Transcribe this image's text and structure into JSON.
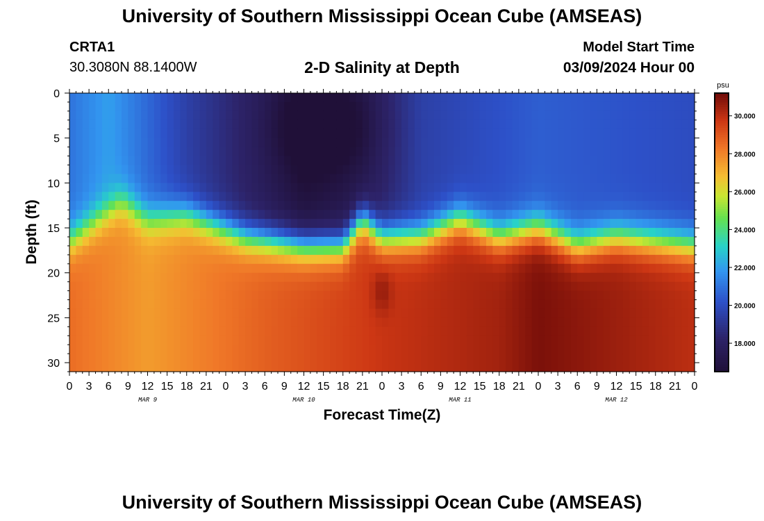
{
  "header": {
    "title": "University of Southern Mississippi Ocean Cube (AMSEAS)",
    "station": "CRTA1",
    "coordinates": "30.3080N  88.1400W",
    "subtitle": "2-D Salinity at Depth",
    "model_start_label": "Model Start Time",
    "model_start_value": "03/09/2024 Hour 00"
  },
  "footer": {
    "title": "University of Southern Mississippi Ocean Cube (AMSEAS)"
  },
  "chart_data": {
    "type": "heatmap",
    "title": "2-D Salinity at Depth",
    "xlabel": "Forecast Time(Z)",
    "ylabel": "Depth (ft)",
    "x_unit": "hours since 03/09/2024 00Z",
    "xlim": [
      0,
      96
    ],
    "ylim": [
      31,
      0
    ],
    "x_tick_labels": [
      "0",
      "3",
      "6",
      "9",
      "12",
      "15",
      "18",
      "21",
      "0",
      "3",
      "6",
      "9",
      "12",
      "15",
      "18",
      "21",
      "0",
      "3",
      "6",
      "9",
      "12",
      "15",
      "18",
      "21",
      "0",
      "3",
      "6",
      "9",
      "12",
      "15",
      "18",
      "21",
      "0"
    ],
    "day_labels": [
      {
        "label": "MAR 9",
        "hour": 12
      },
      {
        "label": "MAR 10",
        "hour": 36
      },
      {
        "label": "MAR 11",
        "hour": 60
      },
      {
        "label": "MAR 12",
        "hour": 84
      }
    ],
    "y_ticks": [
      0,
      5,
      10,
      15,
      20,
      25,
      30
    ],
    "colorbar": {
      "unit": "psu",
      "range": [
        16.5,
        31.2
      ],
      "ticks": [
        "18.000",
        "20.000",
        "22.000",
        "24.000",
        "26.000",
        "28.000",
        "30.000"
      ],
      "tick_values": [
        18,
        20,
        22,
        24,
        26,
        28,
        30
      ]
    },
    "halocline_depth_ft": [
      {
        "hour": 0,
        "depth": 16.5
      },
      {
        "hour": 8,
        "depth": 12
      },
      {
        "hour": 12,
        "depth": 14
      },
      {
        "hour": 18,
        "depth": 13.5
      },
      {
        "hour": 27,
        "depth": 16
      },
      {
        "hour": 36,
        "depth": 17
      },
      {
        "hour": 42,
        "depth": 17
      },
      {
        "hour": 45,
        "depth": 14
      },
      {
        "hour": 48,
        "depth": 16
      },
      {
        "hour": 54,
        "depth": 16
      },
      {
        "hour": 60,
        "depth": 14
      },
      {
        "hour": 66,
        "depth": 16
      },
      {
        "hour": 72,
        "depth": 15
      },
      {
        "hour": 78,
        "depth": 17
      },
      {
        "hour": 84,
        "depth": 16
      },
      {
        "hour": 96,
        "depth": 17
      }
    ],
    "surface_salinity_psu": [
      {
        "hour": 0,
        "value": 21
      },
      {
        "hour": 6,
        "value": 22
      },
      {
        "hour": 18,
        "value": 19.5
      },
      {
        "hour": 36,
        "value": 16.8
      },
      {
        "hour": 45,
        "value": 17.5
      },
      {
        "hour": 54,
        "value": 19.5
      },
      {
        "hour": 72,
        "value": 20.5
      },
      {
        "hour": 96,
        "value": 20
      }
    ],
    "bottom_salinity_psu": [
      {
        "hour": 0,
        "value": 28.5
      },
      {
        "hour": 12,
        "value": 27.5
      },
      {
        "hour": 30,
        "value": 28.8
      },
      {
        "hour": 48,
        "value": 29.8
      },
      {
        "hour": 66,
        "value": 30.4
      },
      {
        "hour": 72,
        "value": 31
      },
      {
        "hour": 96,
        "value": 30
      }
    ]
  }
}
